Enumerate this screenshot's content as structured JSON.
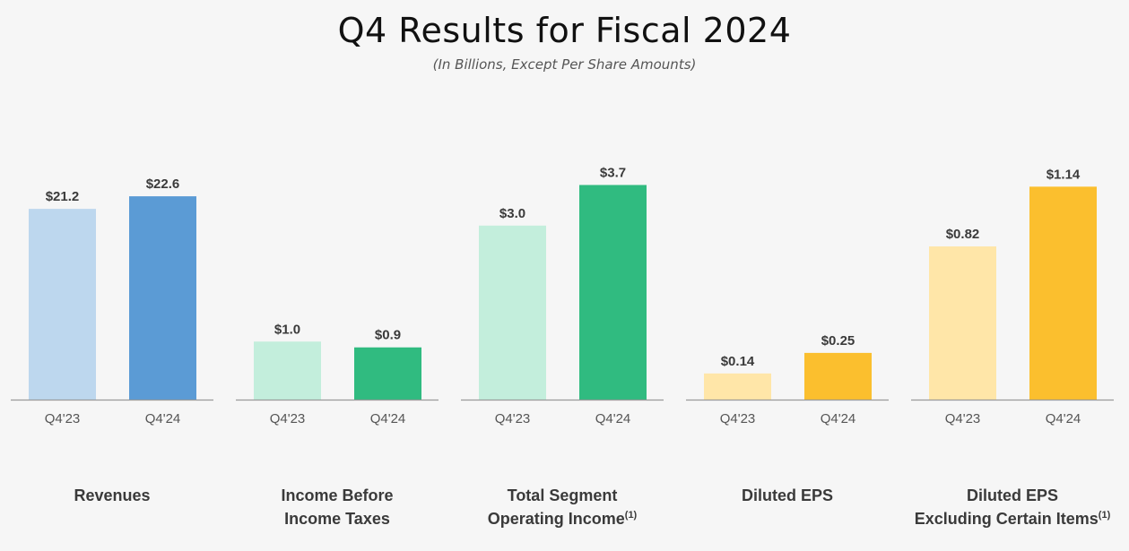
{
  "header": {
    "title": "Q4 Results for Fiscal 2024",
    "subtitle": "(In Billions, Except Per Share Amounts)"
  },
  "colors": {
    "blue_light": "#bdd7ee",
    "blue_dark": "#5b9bd5",
    "green_light": "#c3eedc",
    "green_dark": "#30bb80",
    "yellow_light": "#ffe6a8",
    "yellow_dark": "#fbbf2e",
    "axis": "#9a9a9a",
    "value_text": "#3a3a3a",
    "tick_text": "#555555"
  },
  "chart_data": [
    {
      "type": "bar",
      "title_lines": [
        "Revenues"
      ],
      "footnote": "",
      "categories": [
        "Q4'23",
        "Q4'24"
      ],
      "values": [
        21.2,
        22.6
      ],
      "labels": [
        "$21.2",
        "$22.6"
      ],
      "ylim": [
        0,
        24.5
      ],
      "colors": [
        "#bdd7ee",
        "#5b9bd5"
      ]
    },
    {
      "type": "bar",
      "title_lines": [
        "Income Before",
        "Income Taxes"
      ],
      "footnote": "",
      "categories": [
        "Q4'23",
        "Q4'24"
      ],
      "values": [
        1.0,
        0.9
      ],
      "labels": [
        "$1.0",
        "$0.9"
      ],
      "ylim": [
        0,
        3.8
      ],
      "colors": [
        "#c3eedc",
        "#30bb80"
      ]
    },
    {
      "type": "bar",
      "title_lines": [
        "Total Segment",
        "Operating Income"
      ],
      "footnote": "(1)",
      "categories": [
        "Q4'23",
        "Q4'24"
      ],
      "values": [
        3.0,
        3.7
      ],
      "labels": [
        "$3.0",
        "$3.7"
      ],
      "ylim": [
        0,
        3.8
      ],
      "colors": [
        "#c3eedc",
        "#30bb80"
      ]
    },
    {
      "type": "bar",
      "title_lines": [
        "Diluted EPS"
      ],
      "footnote": "",
      "categories": [
        "Q4'23",
        "Q4'24"
      ],
      "values": [
        0.14,
        0.25
      ],
      "labels": [
        "$0.14",
        "$0.25"
      ],
      "ylim": [
        0,
        1.18
      ],
      "colors": [
        "#ffe6a8",
        "#fbbf2e"
      ]
    },
    {
      "type": "bar",
      "title_lines": [
        "Diluted EPS",
        "Excluding Certain Items"
      ],
      "footnote": "(1)",
      "categories": [
        "Q4'23",
        "Q4'24"
      ],
      "values": [
        0.82,
        1.14
      ],
      "labels": [
        "$0.82",
        "$1.14"
      ],
      "ylim": [
        0,
        1.18
      ],
      "colors": [
        "#ffe6a8",
        "#fbbf2e"
      ]
    }
  ]
}
